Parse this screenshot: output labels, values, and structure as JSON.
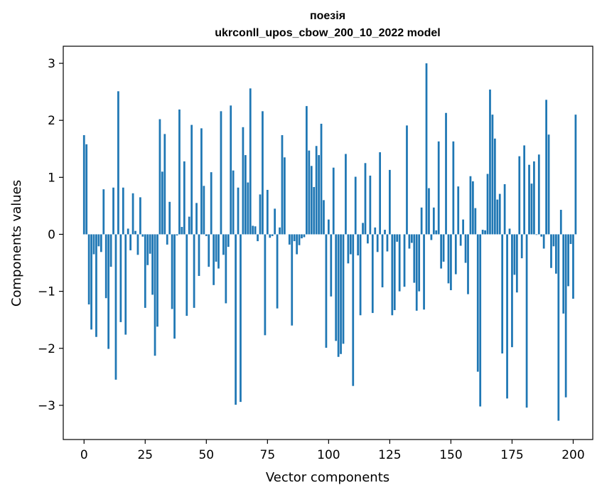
{
  "chart_data": {
    "type": "bar",
    "title": "поезія",
    "subtitle": "ukrconll_upos_cbow_200_10_2022 model",
    "xlabel": "Vector components",
    "ylabel": "Components values",
    "xlim": [
      -8.5,
      208.0
    ],
    "ylim": [
      -3.6,
      3.3
    ],
    "xticks": [
      0,
      25,
      50,
      75,
      100,
      125,
      150,
      175,
      200
    ],
    "xtick_labels": [
      "0",
      "25",
      "50",
      "75",
      "100",
      "125",
      "150",
      "175",
      "200"
    ],
    "yticks": [
      3,
      2,
      1,
      0,
      -1,
      -2,
      -3
    ],
    "ytick_labels": [
      "3",
      "2",
      "1",
      "0",
      "−1",
      "−2",
      "−3"
    ],
    "grid": false,
    "legend": "none",
    "bar_color": "#1f77b4",
    "series": [
      {
        "values": [
          1.74,
          1.58,
          -1.23,
          -1.67,
          -0.35,
          -1.8,
          -0.21,
          -0.31,
          0.79,
          -1.12,
          -2.01,
          -0.57,
          0.82,
          -2.55,
          2.51,
          -1.54,
          0.82,
          -1.76,
          0.1,
          -0.28,
          0.72,
          0.06,
          -0.36,
          0.65,
          -0.04,
          -1.29,
          -0.54,
          -0.34,
          -1.06,
          -2.13,
          -1.62,
          2.02,
          1.1,
          1.76,
          -0.18,
          0.57,
          -1.31,
          -1.83,
          -0.02,
          2.19,
          0.13,
          1.28,
          -1.43,
          0.31,
          1.92,
          -1.29,
          0.55,
          -0.73,
          1.86,
          0.85,
          -0.03,
          -0.57,
          1.09,
          -0.89,
          -0.48,
          -0.6,
          2.16,
          -0.36,
          -1.21,
          -0.22,
          2.26,
          1.12,
          -2.99,
          0.82,
          -2.94,
          1.88,
          1.39,
          0.91,
          2.56,
          0.15,
          0.14,
          -0.12,
          0.7,
          2.16,
          -1.77,
          0.78,
          -0.06,
          -0.03,
          0.45,
          -1.3,
          0.12,
          1.74,
          1.35,
          0.0,
          -0.18,
          -1.6,
          -0.12,
          -0.35,
          -0.19,
          -0.07,
          -0.05,
          2.25,
          1.47,
          1.2,
          0.83,
          1.55,
          1.39,
          1.94,
          0.6,
          -1.99,
          0.26,
          -1.09,
          1.17,
          -1.87,
          -2.15,
          -2.1,
          -1.92,
          1.41,
          -0.51,
          -0.35,
          -2.66,
          1.01,
          -0.37,
          -1.42,
          0.2,
          1.25,
          -0.16,
          1.03,
          -1.38,
          0.12,
          -0.31,
          1.44,
          -0.93,
          0.08,
          -0.3,
          1.13,
          -1.42,
          -1.33,
          -0.13,
          -1.0,
          0.0,
          -0.92,
          1.91,
          -0.25,
          -0.15,
          -0.85,
          -1.34,
          -1.0,
          0.47,
          -1.32,
          3.0,
          0.81,
          -0.1,
          0.47,
          0.07,
          1.63,
          -0.6,
          -0.48,
          2.13,
          -0.86,
          -0.98,
          1.63,
          -0.7,
          0.84,
          -0.2,
          0.26,
          -0.5,
          -1.05,
          1.02,
          0.93,
          0.46,
          -2.41,
          -3.02,
          0.08,
          0.07,
          1.06,
          2.54,
          2.1,
          1.68,
          0.61,
          0.71,
          -2.09,
          0.88,
          -2.88,
          0.1,
          -1.98,
          -0.71,
          -1.02,
          1.37,
          -0.42,
          1.56,
          -3.04,
          1.22,
          0.89,
          1.28,
          -0.01,
          1.4,
          -0.04,
          -0.25,
          2.36,
          1.75,
          -0.59,
          -0.21,
          -0.69,
          -3.27,
          0.43,
          -1.39,
          -2.86,
          -0.91,
          -0.17,
          -1.13,
          2.1
        ]
      }
    ]
  }
}
